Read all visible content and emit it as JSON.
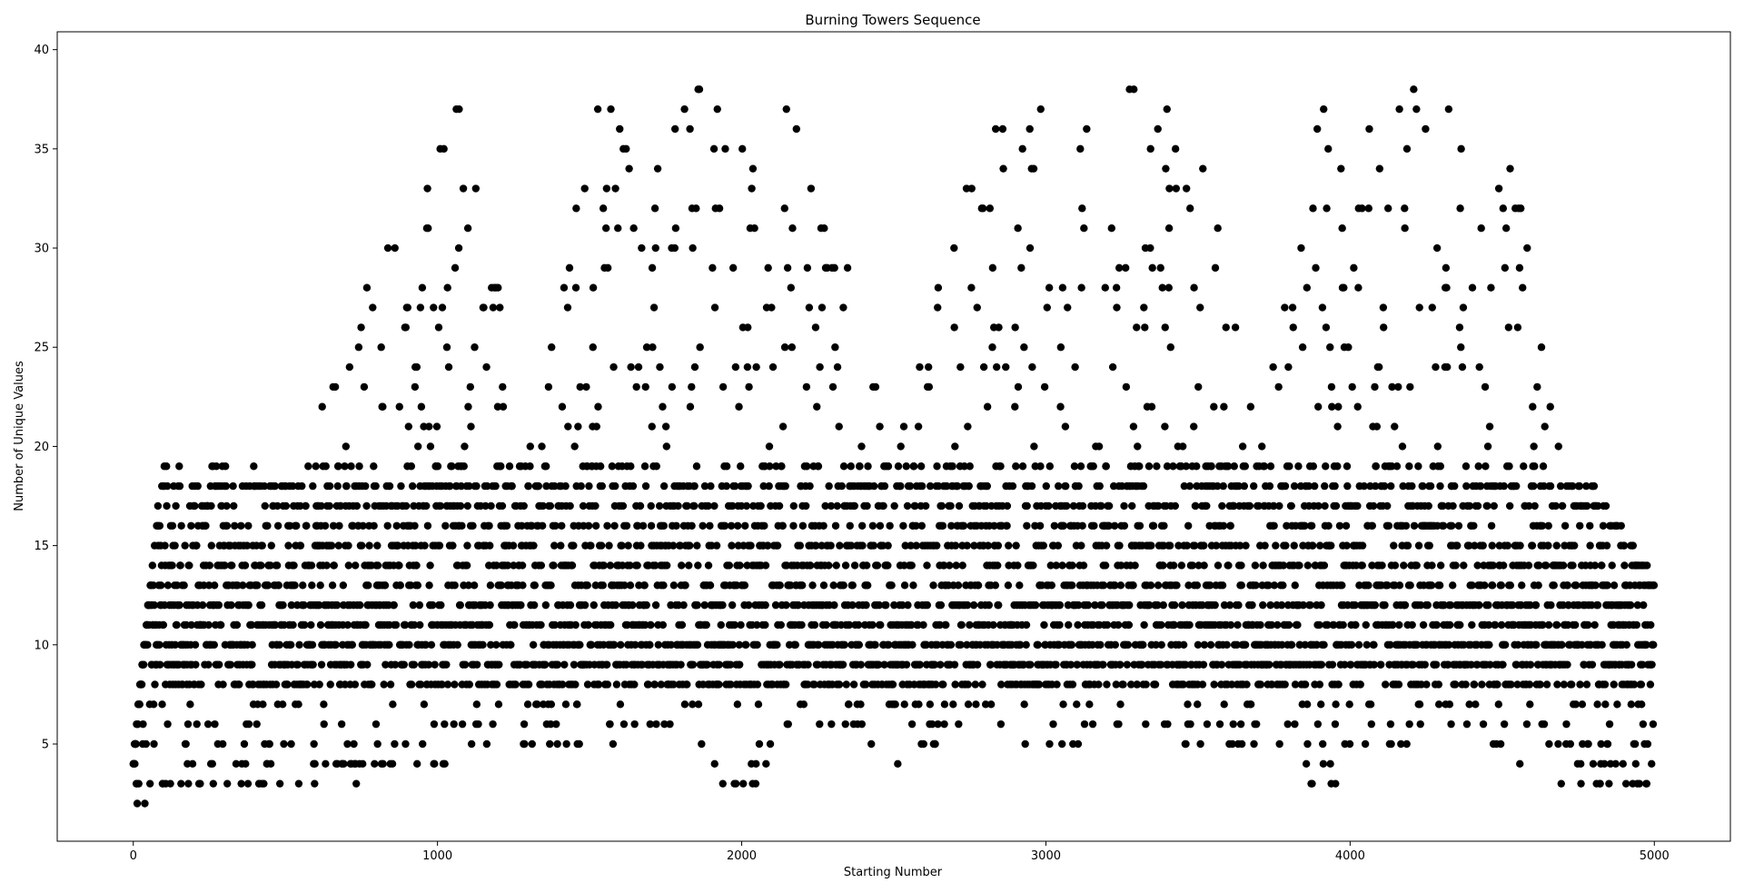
{
  "chart_data": {
    "type": "scatter",
    "title": "Burning Towers Sequence",
    "xlabel": "Starting Number",
    "ylabel": "Number of Unique Values",
    "xlim": [
      -250,
      5250
    ],
    "ylim": [
      0.1,
      40.9
    ],
    "xticks": [
      0,
      1000,
      2000,
      3000,
      4000,
      5000
    ],
    "yticks": [
      5,
      10,
      15,
      20,
      25,
      30,
      35,
      40
    ],
    "grid": false,
    "legend": "none",
    "marker_color": "#000000",
    "point_count": 5000,
    "series": [
      {
        "x_range": [
          0,
          4999
        ],
        "x_step": 1,
        "envelope_description_points": [
          {
            "x": 0,
            "y_min": 2,
            "y_max": 4
          },
          {
            "x": 100,
            "y_min": 3,
            "y_max": 20
          },
          {
            "x": 500,
            "y_min": 3,
            "y_max": 18
          },
          {
            "x": 1000,
            "y_min": 4,
            "y_max": 37
          },
          {
            "x": 1100,
            "y_min": 5,
            "y_max": 38
          },
          {
            "x": 1300,
            "y_min": 5,
            "y_max": 20
          },
          {
            "x": 1500,
            "y_min": 5,
            "y_max": 37
          },
          {
            "x": 1800,
            "y_min": 6,
            "y_max": 39
          },
          {
            "x": 2000,
            "y_min": 2,
            "y_max": 38
          },
          {
            "x": 2200,
            "y_min": 7,
            "y_max": 37
          },
          {
            "x": 2500,
            "y_min": 4,
            "y_max": 20
          },
          {
            "x": 2800,
            "y_min": 7,
            "y_max": 37
          },
          {
            "x": 3000,
            "y_min": 4,
            "y_max": 38
          },
          {
            "x": 3200,
            "y_min": 6,
            "y_max": 39
          },
          {
            "x": 3500,
            "y_min": 5,
            "y_max": 37
          },
          {
            "x": 3700,
            "y_min": 5,
            "y_max": 20
          },
          {
            "x": 3900,
            "y_min": 3,
            "y_max": 38
          },
          {
            "x": 4300,
            "y_min": 6,
            "y_max": 39
          },
          {
            "x": 4500,
            "y_min": 5,
            "y_max": 38
          },
          {
            "x": 4700,
            "y_min": 3,
            "y_max": 20
          },
          {
            "x": 4999,
            "y_min": 3,
            "y_max": 13
          }
        ]
      }
    ]
  }
}
